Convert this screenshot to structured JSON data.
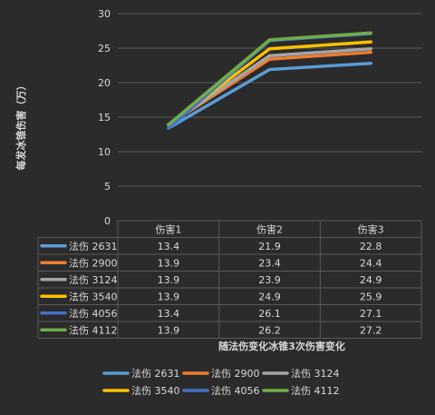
{
  "chart_data": {
    "type": "line",
    "categories": [
      "伤害1",
      "伤害2",
      "伤害3"
    ],
    "series": [
      {
        "name": "法伤 2631",
        "values": [
          13.4,
          21.9,
          22.8
        ],
        "color": "#5b9bd5"
      },
      {
        "name": "法伤 2900",
        "values": [
          13.9,
          23.4,
          24.4
        ],
        "color": "#ed7d31"
      },
      {
        "name": "法伤 3124",
        "values": [
          13.9,
          23.9,
          24.9
        ],
        "color": "#a5a5a5"
      },
      {
        "name": "法伤 3540",
        "values": [
          13.9,
          24.9,
          25.9
        ],
        "color": "#ffc000"
      },
      {
        "name": "法伤 4056",
        "values": [
          13.4,
          26.1,
          27.1
        ],
        "color": "#4472c4"
      },
      {
        "name": "法伤 4112",
        "values": [
          13.9,
          26.2,
          27.2
        ],
        "color": "#70ad47"
      }
    ],
    "xlabel": "随法伤变化冰锥3次伤害变化",
    "ylabel": "每发冰锥伤害（万）",
    "ylim": [
      0,
      30
    ],
    "yticks": [
      0,
      5,
      10,
      15,
      20,
      25,
      30
    ],
    "grid": true,
    "legend": "bottom",
    "data_table": true
  },
  "colors": {
    "background": "#2b2b2b",
    "gridline": "#595959",
    "text": "#d9d9d9"
  }
}
